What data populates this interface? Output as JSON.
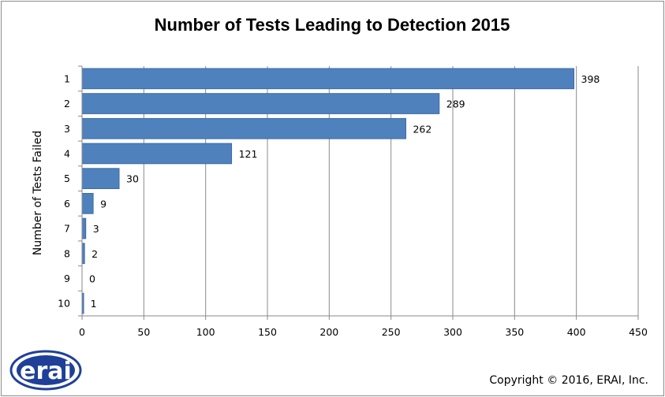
{
  "chart_data": {
    "type": "bar",
    "orientation": "horizontal",
    "title": "Number of Tests Leading to Detection 2015",
    "ylabel": "Number of Tests Failed",
    "xlabel": "",
    "categories": [
      "1",
      "2",
      "3",
      "4",
      "5",
      "6",
      "7",
      "8",
      "9",
      "10"
    ],
    "values": [
      398,
      289,
      262,
      121,
      30,
      9,
      3,
      2,
      0,
      1
    ],
    "xlim": [
      0,
      450
    ],
    "xticks": [
      "0",
      "50",
      "100",
      "150",
      "200",
      "250",
      "300",
      "350",
      "400",
      "450"
    ],
    "grid": "vertical",
    "legend": "none",
    "bar_color": "#4f81bd",
    "bar_edge_color": "#3a6aa8"
  },
  "logo": {
    "text": "erai",
    "color": "#1f3f99"
  },
  "copyright": "Copyright © 2016, ERAI, Inc."
}
